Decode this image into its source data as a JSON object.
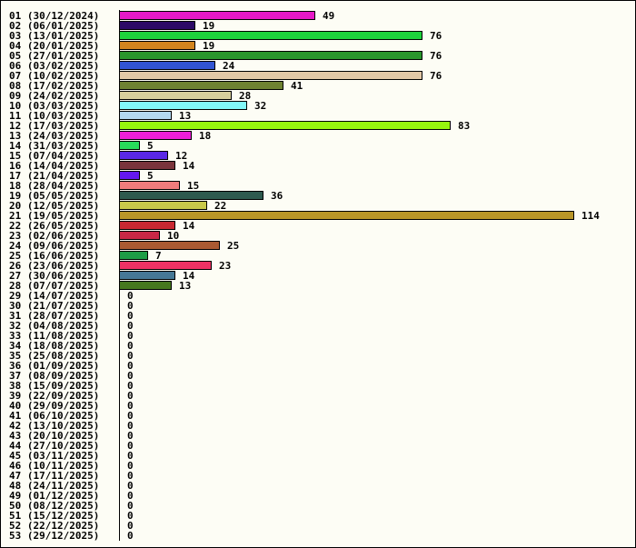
{
  "chart_data": {
    "type": "bar",
    "orientation": "horizontal",
    "title": "",
    "xlabel": "",
    "ylabel": "",
    "grid": false,
    "legend": "none",
    "xlim": [
      0,
      114
    ],
    "categories": [
      "01 (30/12/2024)",
      "02 (06/01/2025)",
      "03 (13/01/2025)",
      "04 (20/01/2025)",
      "05 (27/01/2025)",
      "06 (03/02/2025)",
      "07 (10/02/2025)",
      "08 (17/02/2025)",
      "09 (24/02/2025)",
      "10 (03/03/2025)",
      "11 (10/03/2025)",
      "12 (17/03/2025)",
      "13 (24/03/2025)",
      "14 (31/03/2025)",
      "15 (07/04/2025)",
      "16 (14/04/2025)",
      "17 (21/04/2025)",
      "18 (28/04/2025)",
      "19 (05/05/2025)",
      "20 (12/05/2025)",
      "21 (19/05/2025)",
      "22 (26/05/2025)",
      "23 (02/06/2025)",
      "24 (09/06/2025)",
      "25 (16/06/2025)",
      "26 (23/06/2025)",
      "27 (30/06/2025)",
      "28 (07/07/2025)",
      "29 (14/07/2025)",
      "30 (21/07/2025)",
      "31 (28/07/2025)",
      "32 (04/08/2025)",
      "33 (11/08/2025)",
      "34 (18/08/2025)",
      "35 (25/08/2025)",
      "36 (01/09/2025)",
      "37 (08/09/2025)",
      "38 (15/09/2025)",
      "39 (22/09/2025)",
      "40 (29/09/2025)",
      "41 (06/10/2025)",
      "42 (13/10/2025)",
      "43 (20/10/2025)",
      "44 (27/10/2025)",
      "45 (03/11/2025)",
      "46 (10/11/2025)",
      "47 (17/11/2025)",
      "48 (24/11/2025)",
      "49 (01/12/2025)",
      "50 (08/12/2025)",
      "51 (15/12/2025)",
      "52 (22/12/2025)",
      "53 (29/12/2025)"
    ],
    "values": [
      49,
      19,
      76,
      19,
      76,
      24,
      76,
      41,
      28,
      32,
      13,
      83,
      18,
      5,
      12,
      14,
      5,
      15,
      36,
      22,
      114,
      14,
      10,
      25,
      7,
      23,
      14,
      13,
      0,
      0,
      0,
      0,
      0,
      0,
      0,
      0,
      0,
      0,
      0,
      0,
      0,
      0,
      0,
      0,
      0,
      0,
      0,
      0,
      0,
      0,
      0,
      0,
      0
    ],
    "colors": [
      "#e619c8",
      "#2c0a66",
      "#1ed23c",
      "#d2841e",
      "#2a962d",
      "#3254d2",
      "#e2c8a6",
      "#6e8232",
      "#d7cf9c",
      "#82f8f8",
      "#b4d8f0",
      "#96f50e",
      "#ee1ed8",
      "#28dc5a",
      "#5a28e6",
      "#7a343c",
      "#6418f0",
      "#f07c7c",
      "#2e5a4e",
      "#c8c84a",
      "#b99628",
      "#c82832",
      "#c82846",
      "#aa5a32",
      "#1e9c46",
      "#ee3264",
      "#467896",
      "#46781e",
      "#cccccc",
      "#cccccc",
      "#cccccc",
      "#cccccc",
      "#cccccc",
      "#cccccc",
      "#cccccc",
      "#cccccc",
      "#cccccc",
      "#cccccc",
      "#cccccc",
      "#cccccc",
      "#cccccc",
      "#cccccc",
      "#cccccc",
      "#cccccc",
      "#cccccc",
      "#cccccc",
      "#cccccc",
      "#cccccc",
      "#cccccc",
      "#cccccc",
      "#cccccc",
      "#cccccc",
      "#cccccc"
    ]
  }
}
